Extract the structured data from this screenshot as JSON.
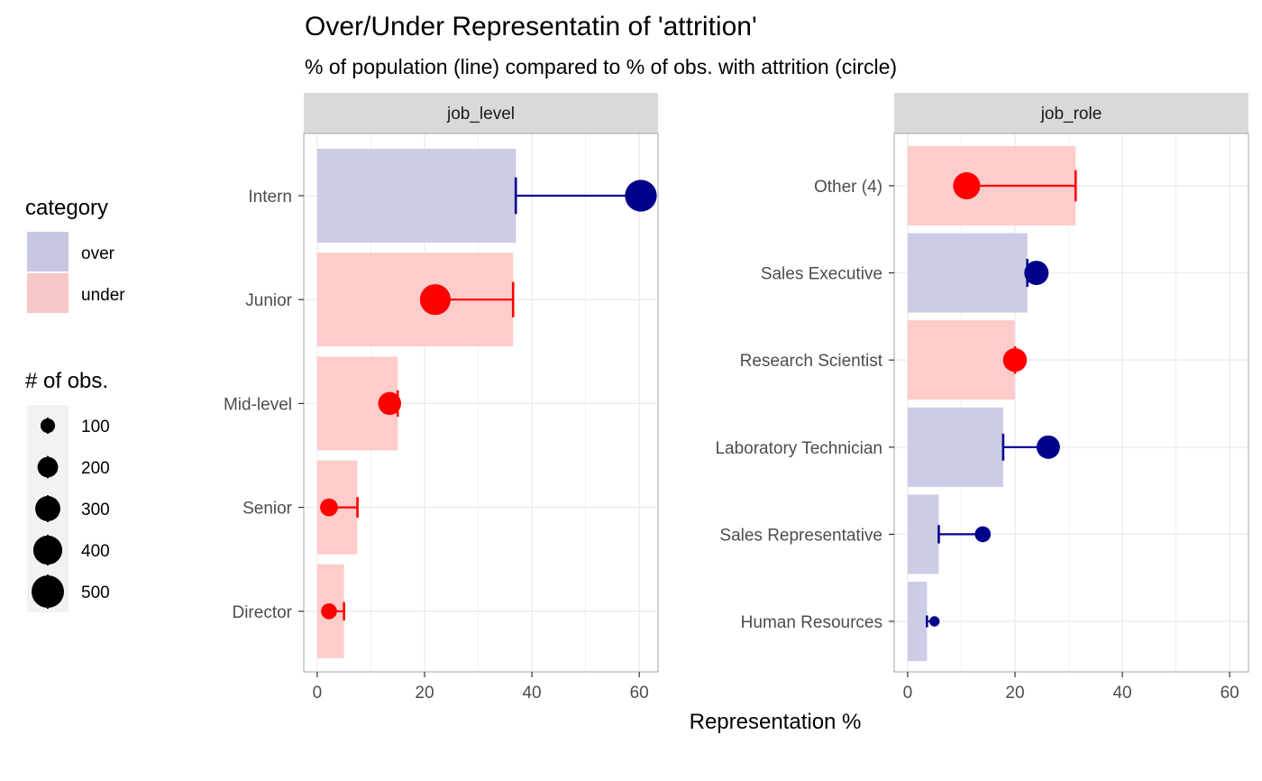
{
  "chart_data": {
    "type": "bar",
    "title": "Over/Under Representatin of 'attrition'",
    "subtitle": "% of population (line) compared to % of obs. with attrition (circle)",
    "xlabel": "Representation %",
    "xlim": [
      -2.5,
      63.5
    ],
    "xticks": [
      0,
      20,
      40,
      60
    ],
    "colors": {
      "over_fill": "#cccce6",
      "under_fill": "#ffcccc",
      "over_mark": "#00008b",
      "under_mark": "#ff0000"
    },
    "legend": {
      "category_title": "category",
      "categories": [
        {
          "label": "over",
          "color": "#c6c6e2"
        },
        {
          "label": "under",
          "color": "#f7c6c6"
        }
      ],
      "size_title": "# of obs.",
      "sizes": [
        100,
        200,
        300,
        400,
        500
      ]
    },
    "panels": [
      {
        "strip": "job_level",
        "categories": [
          "Intern",
          "Junior",
          "Mid-level",
          "Senior",
          "Director"
        ],
        "population_pct": [
          37,
          36.5,
          15,
          7.5,
          5
        ],
        "attrition_pct": [
          60.3,
          22,
          13.5,
          2.2,
          2.2
        ],
        "category": [
          "over",
          "under",
          "under",
          "under",
          "under"
        ],
        "n_obs": [
          480,
          450,
          250,
          150,
          120
        ]
      },
      {
        "strip": "job_role",
        "categories": [
          "Other (4)",
          "Sales Executive",
          "Research Scientist",
          "Laboratory Technician",
          "Sales Representative",
          "Human Resources"
        ],
        "population_pct": [
          31.3,
          22.3,
          20,
          17.8,
          5.8,
          3.6
        ],
        "attrition_pct": [
          11,
          24,
          20,
          26.2,
          14,
          5
        ],
        "category": [
          "under",
          "over",
          "under",
          "over",
          "over",
          "over"
        ],
        "n_obs": [
          350,
          280,
          270,
          260,
          120,
          50
        ]
      }
    ]
  }
}
